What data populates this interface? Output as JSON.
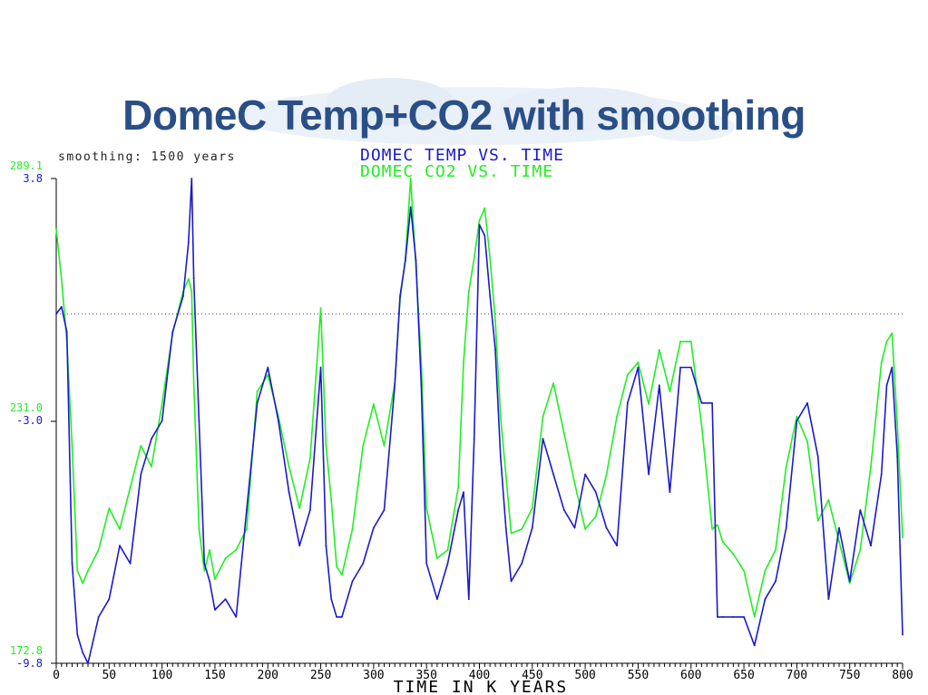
{
  "slide": {
    "title": "DomeC Temp+CO2 with smoothing"
  },
  "colors": {
    "temp": "#1a1acc",
    "co2": "#22ee22",
    "title": "#2a4f86",
    "axis": "#000000"
  },
  "chart_data": {
    "type": "line",
    "smoothing_label": "smoothing: 1500 years",
    "xlabel": "TIME IN K YEARS",
    "xlim": [
      0,
      800
    ],
    "x_ticks": [
      "0",
      "50",
      "100",
      "150",
      "200",
      "250",
      "300",
      "350",
      "400",
      "450",
      "500",
      "550",
      "600",
      "650",
      "700",
      "750",
      "800"
    ],
    "left_axis": {
      "co2_labels": [
        "289.1",
        "231.0",
        "172.8"
      ],
      "temp_labels": [
        "3.8",
        "-3.0",
        "-9.8"
      ],
      "temp_range": [
        -9.8,
        3.8
      ],
      "co2_range": [
        172.8,
        289.1
      ]
    },
    "reference_line_temp": 0.0,
    "series": [
      {
        "name": "DOMEC TEMP VS. TIME",
        "color": "#1a1acc",
        "x": [
          0,
          5,
          10,
          15,
          20,
          25,
          30,
          40,
          50,
          60,
          70,
          80,
          90,
          100,
          110,
          120,
          125,
          128,
          130,
          135,
          140,
          145,
          150,
          160,
          170,
          180,
          190,
          200,
          210,
          220,
          230,
          240,
          250,
          255,
          260,
          265,
          270,
          280,
          290,
          300,
          310,
          320,
          325,
          330,
          335,
          340,
          345,
          350,
          360,
          370,
          380,
          385,
          390,
          395,
          400,
          405,
          410,
          415,
          420,
          425,
          430,
          440,
          450,
          460,
          470,
          480,
          490,
          500,
          510,
          520,
          530,
          540,
          550,
          560,
          570,
          580,
          590,
          600,
          610,
          620,
          625,
          630,
          640,
          650,
          660,
          670,
          680,
          690,
          700,
          710,
          720,
          730,
          740,
          750,
          760,
          770,
          780,
          785,
          790,
          795,
          800
        ],
        "y": [
          0,
          0.2,
          -0.5,
          -7,
          -9,
          -9.5,
          -9.8,
          -8.5,
          -8,
          -6.5,
          -7,
          -4.5,
          -3.5,
          -3,
          -0.5,
          0.5,
          2,
          3.8,
          1,
          -3,
          -7,
          -7.5,
          -8.3,
          -8,
          -8.5,
          -5.5,
          -2.5,
          -1.5,
          -3,
          -5,
          -6.5,
          -5.5,
          -1.5,
          -6.5,
          -8,
          -8.5,
          -8.5,
          -7.5,
          -7,
          -6,
          -5.5,
          -2,
          0.5,
          1.5,
          3,
          1.5,
          -2,
          -7,
          -8,
          -7,
          -5.5,
          -5,
          -8,
          -3.5,
          2.5,
          2.2,
          0.5,
          -1,
          -4,
          -6,
          -7.5,
          -7,
          -6,
          -3.5,
          -4.5,
          -5.5,
          -6,
          -4.5,
          -5,
          -6,
          -6.5,
          -2.5,
          -1.5,
          -4.5,
          -2,
          -5,
          -1.5,
          -1.5,
          -2.5,
          -2.5,
          -8.5,
          -8.5,
          -8.5,
          -8.5,
          -9.3,
          -8,
          -7.5,
          -6,
          -3,
          -2.5,
          -4,
          -8,
          -6,
          -7.5,
          -5.5,
          -6.5,
          -4.5,
          -2,
          -1.5,
          -4,
          -9
        ]
      },
      {
        "name": "DOMEC CO2 VS. TIME",
        "color": "#22ee22",
        "x": [
          0,
          5,
          10,
          15,
          20,
          25,
          30,
          40,
          50,
          60,
          70,
          80,
          90,
          100,
          110,
          120,
          125,
          128,
          130,
          135,
          140,
          145,
          150,
          160,
          170,
          180,
          190,
          200,
          210,
          220,
          230,
          240,
          250,
          255,
          260,
          265,
          270,
          280,
          290,
          300,
          310,
          320,
          325,
          330,
          335,
          340,
          345,
          350,
          360,
          370,
          380,
          385,
          390,
          395,
          400,
          405,
          410,
          415,
          420,
          425,
          430,
          440,
          450,
          460,
          470,
          480,
          490,
          500,
          510,
          520,
          530,
          540,
          550,
          560,
          570,
          580,
          590,
          600,
          610,
          620,
          625,
          630,
          640,
          650,
          660,
          670,
          680,
          690,
          700,
          710,
          720,
          730,
          740,
          750,
          760,
          770,
          780,
          785,
          790,
          795,
          800
        ],
        "y": [
          277,
          265,
          250,
          225,
          195,
          192,
          195,
          200,
          210,
          205,
          215,
          225,
          220,
          235,
          252,
          262,
          265,
          262,
          240,
          205,
          195,
          200,
          193,
          198,
          200,
          205,
          238,
          242,
          232,
          220,
          210,
          222,
          258,
          225,
          212,
          196,
          194,
          205,
          225,
          235,
          225,
          240,
          260,
          270,
          289.1,
          268,
          245,
          210,
          198,
          200,
          215,
          245,
          262,
          270,
          279,
          282,
          270,
          255,
          232,
          218,
          204,
          205,
          210,
          232,
          240,
          228,
          216,
          205,
          208,
          218,
          232,
          242,
          245,
          235,
          248,
          238,
          250,
          250,
          230,
          205,
          206,
          202,
          199,
          195,
          184,
          195,
          200,
          220,
          232,
          226,
          207,
          212,
          202,
          192,
          200,
          220,
          245,
          250,
          252,
          230,
          203
        ]
      }
    ]
  }
}
